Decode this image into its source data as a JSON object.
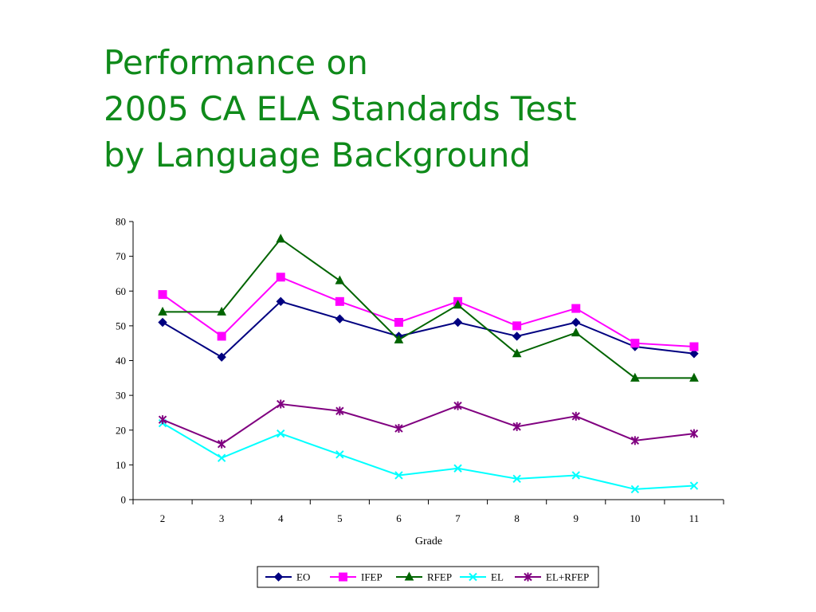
{
  "title_lines": [
    "Performance on",
    "2005 CA ELA Standards Test",
    "by Language Background"
  ],
  "chart_data": {
    "type": "line",
    "title": "Performance on 2005 CA ELA Standards Test by Language Background",
    "xlabel": "Grade",
    "ylabel": "",
    "categories": [
      "2",
      "3",
      "4",
      "5",
      "6",
      "7",
      "8",
      "9",
      "10",
      "11"
    ],
    "ylim": [
      0,
      80
    ],
    "yticks": [
      0,
      10,
      20,
      30,
      40,
      50,
      60,
      70,
      80
    ],
    "grid": false,
    "legend": "bottom",
    "series": [
      {
        "name": "EO",
        "color": "#000080",
        "marker": "diamond",
        "values": [
          51,
          41,
          57,
          52,
          47,
          51,
          47,
          51,
          44,
          42
        ]
      },
      {
        "name": "IFEP",
        "color": "#ff00ff",
        "marker": "square",
        "values": [
          59,
          47,
          64,
          57,
          51,
          57,
          50,
          55,
          45,
          44
        ]
      },
      {
        "name": "RFEP",
        "color": "#006400",
        "marker": "triangle",
        "values": [
          54,
          54,
          75,
          63,
          46,
          56,
          42,
          48,
          35,
          35
        ]
      },
      {
        "name": "EL",
        "color": "#00ffff",
        "marker": "x",
        "values": [
          22,
          12,
          19,
          13,
          7,
          9,
          6,
          7,
          3,
          4
        ]
      },
      {
        "name": "EL+RFEP",
        "color": "#800080",
        "marker": "star",
        "values": [
          23,
          16,
          27.5,
          25.5,
          20.5,
          27,
          21,
          24,
          17,
          19
        ]
      }
    ]
  }
}
